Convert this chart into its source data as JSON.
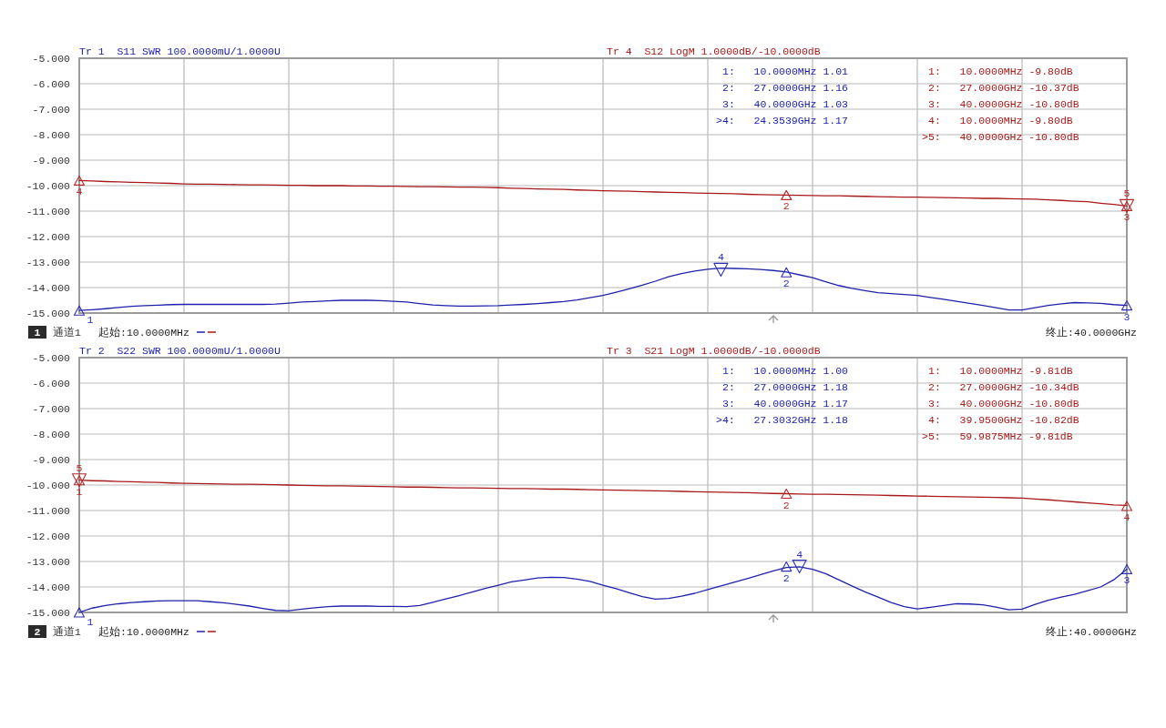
{
  "chart_data": [
    {
      "type": "line",
      "categories": [
        null,
        null,
        null,
        null,
        null,
        null,
        null,
        null,
        null,
        null,
        null,
        null,
        null,
        null,
        null,
        null,
        null,
        null,
        null,
        null,
        null,
        null,
        null,
        null,
        null,
        null,
        null,
        null,
        null,
        null,
        null,
        null,
        null,
        null,
        null,
        null,
        null,
        null,
        null,
        null,
        null,
        null,
        null,
        null,
        null,
        null,
        null,
        null,
        null,
        null,
        null,
        null,
        null,
        null,
        null,
        null,
        null,
        null,
        null,
        null,
        null,
        null,
        null,
        null,
        null,
        null,
        null,
        null,
        null,
        null,
        null,
        null,
        null,
        null,
        null,
        null,
        null,
        null,
        null,
        null,
        null
      ],
      "ylim": [
        -15,
        -5
      ],
      "yticks": [
        {
          "value": -5,
          "label": "-5.000"
        },
        {
          "value": -6,
          "label": "-6.000"
        },
        {
          "value": -7,
          "label": "-7.000"
        },
        {
          "value": -8,
          "label": "-8.000"
        },
        {
          "value": -9,
          "label": "-9.000"
        },
        {
          "value": -10,
          "label": "-10.000"
        },
        {
          "value": -11,
          "label": "-11.000"
        },
        {
          "value": -12,
          "label": "-12.000"
        },
        {
          "value": -13,
          "label": "-13.000"
        },
        {
          "value": -14,
          "label": "-14.000"
        },
        {
          "value": -15,
          "label": "-15.000"
        }
      ],
      "tick_labels": "y",
      "grid": true,
      "series": [
        {
          "name": "Tr 1  S11 SWR 100.0000mU/1.0000U",
          "color": "#1e22aa",
          "values": [
            -14.9,
            -14.87,
            -14.83,
            -14.78,
            -14.74,
            -14.71,
            -14.69,
            -14.67,
            -14.66,
            -14.66,
            -14.66,
            -14.66,
            -14.66,
            -14.66,
            -14.66,
            -14.65,
            -14.61,
            -14.57,
            -14.55,
            -14.52,
            -14.5,
            -14.5,
            -14.5,
            -14.51,
            -14.54,
            -14.57,
            -14.63,
            -14.68,
            -14.71,
            -14.73,
            -14.73,
            -14.72,
            -14.71,
            -14.68,
            -14.66,
            -14.63,
            -14.59,
            -14.55,
            -14.49,
            -14.4,
            -14.31,
            -14.18,
            -14.05,
            -13.91,
            -13.75,
            -13.58,
            -13.45,
            -13.35,
            -13.28,
            -13.24,
            -13.25,
            -13.26,
            -13.29,
            -13.33,
            -13.39,
            -13.5,
            -13.61,
            -13.77,
            -13.92,
            -14.03,
            -14.12,
            -14.2,
            -14.24,
            -14.27,
            -14.31,
            -14.39,
            -14.46,
            -14.54,
            -14.62,
            -14.7,
            -14.79,
            -14.88,
            -14.88,
            -14.79,
            -14.7,
            -14.64,
            -14.59,
            -14.6,
            -14.62,
            -14.67,
            -14.7
          ]
        },
        {
          "name": "Tr 4  S12 LogM 1.0000dB/-10.0000dB",
          "color": "#a81818",
          "values": [
            -9.8,
            -9.82,
            -9.84,
            -9.85,
            -9.87,
            -9.88,
            -9.9,
            -9.91,
            -9.93,
            -9.94,
            -9.94,
            -9.95,
            -9.96,
            -9.97,
            -9.97,
            -9.98,
            -9.99,
            -9.99,
            -10.0,
            -10.0,
            -10.0,
            -10.01,
            -10.01,
            -10.02,
            -10.02,
            -10.03,
            -10.04,
            -10.04,
            -10.05,
            -10.06,
            -10.06,
            -10.07,
            -10.08,
            -10.1,
            -10.11,
            -10.13,
            -10.14,
            -10.15,
            -10.17,
            -10.18,
            -10.2,
            -10.21,
            -10.22,
            -10.24,
            -10.25,
            -10.26,
            -10.27,
            -10.29,
            -10.3,
            -10.31,
            -10.32,
            -10.34,
            -10.35,
            -10.36,
            -10.37,
            -10.38,
            -10.39,
            -10.4,
            -10.4,
            -10.41,
            -10.42,
            -10.43,
            -10.44,
            -10.45,
            -10.45,
            -10.46,
            -10.47,
            -10.48,
            -10.49,
            -10.5,
            -10.5,
            -10.51,
            -10.52,
            -10.53,
            -10.56,
            -10.58,
            -10.61,
            -10.63,
            -10.69,
            -10.74,
            -10.8
          ]
        },
        {
          "type": "scatter",
          "name": "4",
          "color": "#b82828",
          "marker": "triangle",
          "values": [
            -9.8,
            null,
            null,
            null,
            null,
            null,
            null,
            null,
            null,
            null,
            null,
            null,
            null,
            null,
            null,
            null,
            null,
            null,
            null,
            null,
            null,
            null,
            null,
            null,
            null,
            null,
            null,
            null,
            null,
            null,
            null,
            null,
            null,
            null,
            null,
            null,
            null,
            null,
            null,
            null,
            null,
            null,
            null,
            null,
            null,
            null,
            null,
            null,
            null,
            null,
            null,
            null,
            null,
            null,
            null,
            null,
            null,
            null,
            null,
            null,
            null,
            null,
            null,
            null,
            null,
            null,
            null,
            null,
            null,
            null,
            null,
            null,
            null,
            null,
            null,
            null,
            null,
            null,
            null,
            null,
            null
          ]
        },
        {
          "type": "scatter",
          "name": "2",
          "color": "#b82828",
          "marker": "triangle",
          "values": [
            null,
            null,
            null,
            null,
            null,
            null,
            null,
            null,
            null,
            null,
            null,
            null,
            null,
            null,
            null,
            null,
            null,
            null,
            null,
            null,
            null,
            null,
            null,
            null,
            null,
            null,
            null,
            null,
            null,
            null,
            null,
            null,
            null,
            null,
            null,
            null,
            null,
            null,
            null,
            null,
            null,
            null,
            null,
            null,
            null,
            null,
            null,
            null,
            null,
            null,
            null,
            null,
            null,
            null,
            -10.37,
            null,
            null,
            null,
            null,
            null,
            null,
            null,
            null,
            null,
            null,
            null,
            null,
            null,
            null,
            null,
            null,
            null,
            null,
            null,
            null,
            null,
            null,
            null,
            null,
            null,
            null
          ]
        },
        {
          "type": "scatter",
          "name": "3",
          "color": "#b82828",
          "marker": "triangle",
          "values": [
            null,
            null,
            null,
            null,
            null,
            null,
            null,
            null,
            null,
            null,
            null,
            null,
            null,
            null,
            null,
            null,
            null,
            null,
            null,
            null,
            null,
            null,
            null,
            null,
            null,
            null,
            null,
            null,
            null,
            null,
            null,
            null,
            null,
            null,
            null,
            null,
            null,
            null,
            null,
            null,
            null,
            null,
            null,
            null,
            null,
            null,
            null,
            null,
            null,
            null,
            null,
            null,
            null,
            null,
            null,
            null,
            null,
            null,
            null,
            null,
            null,
            null,
            null,
            null,
            null,
            null,
            null,
            null,
            null,
            null,
            null,
            null,
            null,
            null,
            null,
            null,
            null,
            null,
            null,
            null,
            -10.8
          ]
        },
        {
          "type": "scatter",
          "name": "5",
          "color": "#b82828",
          "marker": "triangle",
          "values": [
            null,
            null,
            null,
            null,
            null,
            null,
            null,
            null,
            null,
            null,
            null,
            null,
            null,
            null,
            null,
            null,
            null,
            null,
            null,
            null,
            null,
            null,
            null,
            null,
            null,
            null,
            null,
            null,
            null,
            null,
            null,
            null,
            null,
            null,
            null,
            null,
            null,
            null,
            null,
            null,
            null,
            null,
            null,
            null,
            null,
            null,
            null,
            null,
            null,
            null,
            null,
            null,
            null,
            null,
            null,
            null,
            null,
            null,
            null,
            null,
            null,
            null,
            null,
            null,
            null,
            null,
            null,
            null,
            null,
            null,
            null,
            null,
            null,
            null,
            null,
            null,
            null,
            null,
            null,
            null,
            -10.8
          ]
        },
        {
          "type": "scatter",
          "name": "1",
          "color": "#2a2eb8",
          "marker": "triangle",
          "values": [
            -14.9,
            null,
            null,
            null,
            null,
            null,
            null,
            null,
            null,
            null,
            null,
            null,
            null,
            null,
            null,
            null,
            null,
            null,
            null,
            null,
            null,
            null,
            null,
            null,
            null,
            null,
            null,
            null,
            null,
            null,
            null,
            null,
            null,
            null,
            null,
            null,
            null,
            null,
            null,
            null,
            null,
            null,
            null,
            null,
            null,
            null,
            null,
            null,
            null,
            null,
            null,
            null,
            null,
            null,
            null,
            null,
            null,
            null,
            null,
            null,
            null,
            null,
            null,
            null,
            null,
            null,
            null,
            null,
            null,
            null,
            null,
            null,
            null,
            null,
            null,
            null,
            null,
            null,
            null,
            null,
            null
          ]
        },
        {
          "type": "scatter",
          "name": "2",
          "color": "#2a2eb8",
          "marker": "triangle",
          "values": [
            null,
            null,
            null,
            null,
            null,
            null,
            null,
            null,
            null,
            null,
            null,
            null,
            null,
            null,
            null,
            null,
            null,
            null,
            null,
            null,
            null,
            null,
            null,
            null,
            null,
            null,
            null,
            null,
            null,
            null,
            null,
            null,
            null,
            null,
            null,
            null,
            null,
            null,
            null,
            null,
            null,
            null,
            null,
            null,
            null,
            null,
            null,
            null,
            null,
            null,
            null,
            null,
            null,
            null,
            -13.4,
            null,
            null,
            null,
            null,
            null,
            null,
            null,
            null,
            null,
            null,
            null,
            null,
            null,
            null,
            null,
            null,
            null,
            null,
            null,
            null,
            null,
            null,
            null,
            null,
            null,
            null
          ]
        },
        {
          "type": "scatter",
          "name": "3",
          "color": "#2a2eb8",
          "marker": "triangle",
          "values": [
            null,
            null,
            null,
            null,
            null,
            null,
            null,
            null,
            null,
            null,
            null,
            null,
            null,
            null,
            null,
            null,
            null,
            null,
            null,
            null,
            null,
            null,
            null,
            null,
            null,
            null,
            null,
            null,
            null,
            null,
            null,
            null,
            null,
            null,
            null,
            null,
            null,
            null,
            null,
            null,
            null,
            null,
            null,
            null,
            null,
            null,
            null,
            null,
            null,
            null,
            null,
            null,
            null,
            null,
            null,
            null,
            null,
            null,
            null,
            null,
            null,
            null,
            null,
            null,
            null,
            null,
            null,
            null,
            null,
            null,
            null,
            null,
            null,
            null,
            null,
            null,
            null,
            null,
            null,
            null,
            -14.7
          ]
        },
        {
          "type": "scatter",
          "name": "4",
          "color": "#2a2eb8",
          "marker": "triangle",
          "values": [
            null,
            null,
            null,
            null,
            null,
            null,
            null,
            null,
            null,
            null,
            null,
            null,
            null,
            null,
            null,
            null,
            null,
            null,
            null,
            null,
            null,
            null,
            null,
            null,
            null,
            null,
            null,
            null,
            null,
            null,
            null,
            null,
            null,
            null,
            null,
            null,
            null,
            null,
            null,
            null,
            null,
            null,
            null,
            null,
            null,
            null,
            null,
            null,
            null,
            -13.3,
            null,
            null,
            null,
            null,
            null,
            null,
            null,
            null,
            null,
            null,
            null,
            null,
            null,
            null,
            null,
            null,
            null,
            null,
            null,
            null,
            null,
            null,
            null,
            null,
            null,
            null,
            null,
            null,
            null,
            null,
            null
          ]
        }
      ],
      "annotations": [
        "1",
        "通道1",
        "起始:10.0000MHz",
        "终止:40.0000GHz",
        "1:   10.0000MHz 1.01",
        "2:   27.0000GHz 1.16",
        "3:   40.0000GHz 1.03",
        ">4:   24.3539GHz 1.17",
        "1:   10.0000MHz -9.80dB",
        "2:   27.0000GHz -10.37dB",
        "3:   40.0000GHz -10.80dB",
        "4:   10.0000MHz -9.80dB",
        ">5:   40.0000GHz -10.80dB"
      ]
    },
    {
      "type": "line",
      "categories": [
        null,
        null,
        null,
        null,
        null,
        null,
        null,
        null,
        null,
        null,
        null,
        null,
        null,
        null,
        null,
        null,
        null,
        null,
        null,
        null,
        null,
        null,
        null,
        null,
        null,
        null,
        null,
        null,
        null,
        null,
        null,
        null,
        null,
        null,
        null,
        null,
        null,
        null,
        null,
        null,
        null,
        null,
        null,
        null,
        null,
        null,
        null,
        null,
        null,
        null,
        null,
        null,
        null,
        null,
        null,
        null,
        null,
        null,
        null,
        null,
        null,
        null,
        null,
        null,
        null,
        null,
        null,
        null,
        null,
        null,
        null,
        null,
        null,
        null,
        null,
        null,
        null,
        null,
        null,
        null,
        null
      ],
      "ylim": [
        -15,
        -5
      ],
      "yticks": [
        {
          "value": -5,
          "label": "-5.000"
        },
        {
          "value": -6,
          "label": "-6.000"
        },
        {
          "value": -7,
          "label": "-7.000"
        },
        {
          "value": -8,
          "label": "-8.000"
        },
        {
          "value": -9,
          "label": "-9.000"
        },
        {
          "value": -10,
          "label": "-10.000"
        },
        {
          "value": -11,
          "label": "-11.000"
        },
        {
          "value": -12,
          "label": "-12.000"
        },
        {
          "value": -13,
          "label": "-13.000"
        },
        {
          "value": -14,
          "label": "-14.000"
        },
        {
          "value": -15,
          "label": "-15.000"
        }
      ],
      "tick_labels": "y",
      "grid": true,
      "series": [
        {
          "name": "Tr 2  S22 SWR 100.0000mU/1.0000U",
          "color": "#1e22aa",
          "values": [
            -15.0,
            -14.83,
            -14.73,
            -14.66,
            -14.61,
            -14.58,
            -14.55,
            -14.54,
            -14.54,
            -14.54,
            -14.58,
            -14.62,
            -14.68,
            -14.75,
            -14.84,
            -14.92,
            -14.93,
            -14.87,
            -14.82,
            -14.77,
            -14.75,
            -14.75,
            -14.75,
            -14.76,
            -14.76,
            -14.77,
            -14.73,
            -14.6,
            -14.47,
            -14.34,
            -14.2,
            -14.06,
            -13.93,
            -13.8,
            -13.73,
            -13.65,
            -13.62,
            -13.63,
            -13.69,
            -13.78,
            -13.93,
            -14.07,
            -14.23,
            -14.38,
            -14.48,
            -14.45,
            -14.36,
            -14.25,
            -14.1,
            -13.96,
            -13.82,
            -13.67,
            -13.52,
            -13.37,
            -13.24,
            -13.21,
            -13.31,
            -13.48,
            -13.72,
            -13.96,
            -14.19,
            -14.4,
            -14.61,
            -14.77,
            -14.86,
            -14.8,
            -14.73,
            -14.66,
            -14.67,
            -14.7,
            -14.79,
            -14.9,
            -14.87,
            -14.68,
            -14.52,
            -14.4,
            -14.29,
            -14.15,
            -14.0,
            -13.72,
            -13.3
          ]
        },
        {
          "name": "Tr 3  S21 LogM 1.0000dB/-10.0000dB",
          "color": "#a81818",
          "values": [
            -9.81,
            -9.83,
            -9.84,
            -9.86,
            -9.87,
            -9.89,
            -9.9,
            -9.92,
            -9.93,
            -9.94,
            -9.95,
            -9.96,
            -9.97,
            -9.97,
            -9.98,
            -9.99,
            -10.0,
            -10.01,
            -10.02,
            -10.03,
            -10.03,
            -10.04,
            -10.05,
            -10.06,
            -10.07,
            -10.08,
            -10.08,
            -10.09,
            -10.1,
            -10.11,
            -10.11,
            -10.12,
            -10.13,
            -10.14,
            -10.14,
            -10.15,
            -10.16,
            -10.16,
            -10.17,
            -10.18,
            -10.19,
            -10.2,
            -10.21,
            -10.22,
            -10.23,
            -10.24,
            -10.25,
            -10.26,
            -10.27,
            -10.28,
            -10.29,
            -10.3,
            -10.32,
            -10.33,
            -10.34,
            -10.35,
            -10.36,
            -10.36,
            -10.37,
            -10.38,
            -10.39,
            -10.4,
            -10.41,
            -10.42,
            -10.43,
            -10.44,
            -10.45,
            -10.46,
            -10.47,
            -10.48,
            -10.49,
            -10.5,
            -10.51,
            -10.55,
            -10.58,
            -10.62,
            -10.66,
            -10.7,
            -10.74,
            -10.78,
            -10.8
          ]
        },
        {
          "type": "scatter",
          "name": "1",
          "color": "#b82828",
          "marker": "triangle",
          "values": [
            -9.81,
            null,
            null,
            null,
            null,
            null,
            null,
            null,
            null,
            null,
            null,
            null,
            null,
            null,
            null,
            null,
            null,
            null,
            null,
            null,
            null,
            null,
            null,
            null,
            null,
            null,
            null,
            null,
            null,
            null,
            null,
            null,
            null,
            null,
            null,
            null,
            null,
            null,
            null,
            null,
            null,
            null,
            null,
            null,
            null,
            null,
            null,
            null,
            null,
            null,
            null,
            null,
            null,
            null,
            null,
            null,
            null,
            null,
            null,
            null,
            null,
            null,
            null,
            null,
            null,
            null,
            null,
            null,
            null,
            null,
            null,
            null,
            null,
            null,
            null,
            null,
            null,
            null,
            null,
            null,
            null
          ]
        },
        {
          "type": "scatter",
          "name": "2",
          "color": "#b82828",
          "marker": "triangle",
          "values": [
            null,
            null,
            null,
            null,
            null,
            null,
            null,
            null,
            null,
            null,
            null,
            null,
            null,
            null,
            null,
            null,
            null,
            null,
            null,
            null,
            null,
            null,
            null,
            null,
            null,
            null,
            null,
            null,
            null,
            null,
            null,
            null,
            null,
            null,
            null,
            null,
            null,
            null,
            null,
            null,
            null,
            null,
            null,
            null,
            null,
            null,
            null,
            null,
            null,
            null,
            null,
            null,
            null,
            null,
            -10.34,
            null,
            null,
            null,
            null,
            null,
            null,
            null,
            null,
            null,
            null,
            null,
            null,
            null,
            null,
            null,
            null,
            null,
            null,
            null,
            null,
            null,
            null,
            null,
            null,
            null,
            null
          ]
        },
        {
          "type": "scatter",
          "name": "4",
          "color": "#b82828",
          "marker": "triangle",
          "values": [
            null,
            null,
            null,
            null,
            null,
            null,
            null,
            null,
            null,
            null,
            null,
            null,
            null,
            null,
            null,
            null,
            null,
            null,
            null,
            null,
            null,
            null,
            null,
            null,
            null,
            null,
            null,
            null,
            null,
            null,
            null,
            null,
            null,
            null,
            null,
            null,
            null,
            null,
            null,
            null,
            null,
            null,
            null,
            null,
            null,
            null,
            null,
            null,
            null,
            null,
            null,
            null,
            null,
            null,
            null,
            null,
            null,
            null,
            null,
            null,
            null,
            null,
            null,
            null,
            null,
            null,
            null,
            null,
            null,
            null,
            null,
            null,
            null,
            null,
            null,
            null,
            null,
            null,
            null,
            null,
            -10.82
          ]
        },
        {
          "type": "scatter",
          "name": "5",
          "color": "#b82828",
          "marker": "triangle",
          "values": [
            -9.81,
            null,
            null,
            null,
            null,
            null,
            null,
            null,
            null,
            null,
            null,
            null,
            null,
            null,
            null,
            null,
            null,
            null,
            null,
            null,
            null,
            null,
            null,
            null,
            null,
            null,
            null,
            null,
            null,
            null,
            null,
            null,
            null,
            null,
            null,
            null,
            null,
            null,
            null,
            null,
            null,
            null,
            null,
            null,
            null,
            null,
            null,
            null,
            null,
            null,
            null,
            null,
            null,
            null,
            null,
            null,
            null,
            null,
            null,
            null,
            null,
            null,
            null,
            null,
            null,
            null,
            null,
            null,
            null,
            null,
            null,
            null,
            null,
            null,
            null,
            null,
            null,
            null,
            null,
            null,
            null
          ]
        },
        {
          "type": "scatter",
          "name": "1",
          "color": "#2a2eb8",
          "marker": "triangle",
          "values": [
            -15.0,
            null,
            null,
            null,
            null,
            null,
            null,
            null,
            null,
            null,
            null,
            null,
            null,
            null,
            null,
            null,
            null,
            null,
            null,
            null,
            null,
            null,
            null,
            null,
            null,
            null,
            null,
            null,
            null,
            null,
            null,
            null,
            null,
            null,
            null,
            null,
            null,
            null,
            null,
            null,
            null,
            null,
            null,
            null,
            null,
            null,
            null,
            null,
            null,
            null,
            null,
            null,
            null,
            null,
            null,
            null,
            null,
            null,
            null,
            null,
            null,
            null,
            null,
            null,
            null,
            null,
            null,
            null,
            null,
            null,
            null,
            null,
            null,
            null,
            null,
            null,
            null,
            null,
            null,
            null,
            null
          ]
        },
        {
          "type": "scatter",
          "name": "2",
          "color": "#2a2eb8",
          "marker": "triangle",
          "values": [
            null,
            null,
            null,
            null,
            null,
            null,
            null,
            null,
            null,
            null,
            null,
            null,
            null,
            null,
            null,
            null,
            null,
            null,
            null,
            null,
            null,
            null,
            null,
            null,
            null,
            null,
            null,
            null,
            null,
            null,
            null,
            null,
            null,
            null,
            null,
            null,
            null,
            null,
            null,
            null,
            null,
            null,
            null,
            null,
            null,
            null,
            null,
            null,
            null,
            null,
            null,
            null,
            null,
            null,
            -13.2,
            null,
            null,
            null,
            null,
            null,
            null,
            null,
            null,
            null,
            null,
            null,
            null,
            null,
            null,
            null,
            null,
            null,
            null,
            null,
            null,
            null,
            null,
            null,
            null,
            null,
            null
          ]
        },
        {
          "type": "scatter",
          "name": "3",
          "color": "#2a2eb8",
          "marker": "triangle",
          "values": [
            null,
            null,
            null,
            null,
            null,
            null,
            null,
            null,
            null,
            null,
            null,
            null,
            null,
            null,
            null,
            null,
            null,
            null,
            null,
            null,
            null,
            null,
            null,
            null,
            null,
            null,
            null,
            null,
            null,
            null,
            null,
            null,
            null,
            null,
            null,
            null,
            null,
            null,
            null,
            null,
            null,
            null,
            null,
            null,
            null,
            null,
            null,
            null,
            null,
            null,
            null,
            null,
            null,
            null,
            null,
            null,
            null,
            null,
            null,
            null,
            null,
            null,
            null,
            null,
            null,
            null,
            null,
            null,
            null,
            null,
            null,
            null,
            null,
            null,
            null,
            null,
            null,
            null,
            null,
            null,
            -13.3
          ]
        },
        {
          "type": "scatter",
          "name": "4",
          "color": "#2a2eb8",
          "marker": "triangle",
          "values": [
            null,
            null,
            null,
            null,
            null,
            null,
            null,
            null,
            null,
            null,
            null,
            null,
            null,
            null,
            null,
            null,
            null,
            null,
            null,
            null,
            null,
            null,
            null,
            null,
            null,
            null,
            null,
            null,
            null,
            null,
            null,
            null,
            null,
            null,
            null,
            null,
            null,
            null,
            null,
            null,
            null,
            null,
            null,
            null,
            null,
            null,
            null,
            null,
            null,
            null,
            null,
            null,
            null,
            null,
            null,
            -13.2,
            null,
            null,
            null,
            null,
            null,
            null,
            null,
            null,
            null,
            null,
            null,
            null,
            null,
            null,
            null,
            null,
            null,
            null,
            null,
            null,
            null,
            null,
            null,
            null,
            null
          ]
        }
      ],
      "annotations": [
        "2",
        "通道1",
        "起始:10.0000MHz",
        "终止:40.0000GHz",
        "1:   10.0000MHz 1.00",
        "2:   27.0000GHz 1.18",
        "3:   40.0000GHz 1.17",
        ">4:   27.3032GHz 1.18",
        "1:   10.0000MHz -9.81dB",
        "2:   27.0000GHz -10.34dB",
        "3:   40.0000GHz -10.80dB",
        "4:   39.9500GHz -10.82dB",
        ">5:   59.9875MHz -9.81dB"
      ]
    }
  ]
}
